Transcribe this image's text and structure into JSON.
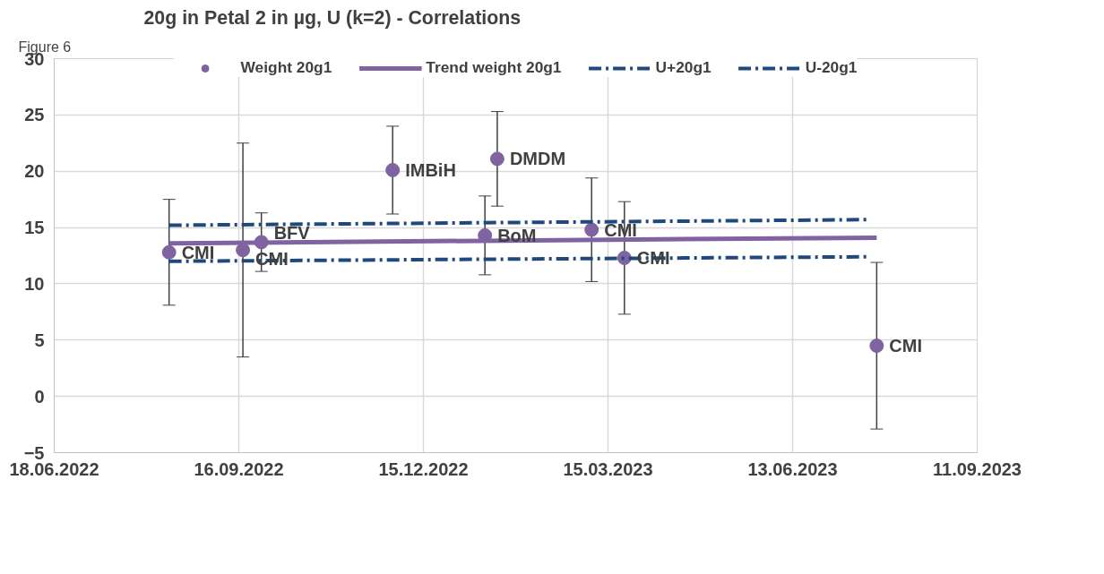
{
  "chart_data": {
    "type": "scatter",
    "title": "20g in Petal 2 in µg, U (k=2) - Correlations",
    "xlim": [
      "2022-06-18",
      "2023-09-11"
    ],
    "xticks": [
      {
        "value": "2022-06-18",
        "label": "18.06.2022"
      },
      {
        "value": "2022-09-16",
        "label": "16.09.2022"
      },
      {
        "value": "2022-12-15",
        "label": "15.12.2022"
      },
      {
        "value": "2023-03-15",
        "label": "15.03.2023"
      },
      {
        "value": "2023-06-13",
        "label": "13.06.2023"
      },
      {
        "value": "2023-09-11",
        "label": "11.09.2023"
      }
    ],
    "ylim": [
      -5,
      30
    ],
    "yticks": [
      -5,
      0,
      5,
      10,
      15,
      20,
      25,
      30
    ],
    "grid": true,
    "legend": "top",
    "series": [
      {
        "name": "Weight 20g1",
        "marker": "circle",
        "color": "#8064a2",
        "x": [
          "2022-08-13",
          "2022-09-18",
          "2022-09-27",
          "2022-11-30",
          "2023-01-14",
          "2023-01-20",
          "2023-03-07",
          "2023-03-23",
          "2023-07-24"
        ],
        "values": [
          12.8,
          13.0,
          13.7,
          20.1,
          14.3,
          21.1,
          14.8,
          12.3,
          4.5
        ],
        "errors": [
          4.7,
          9.5,
          2.6,
          3.9,
          3.5,
          4.2,
          4.6,
          5.0,
          7.4
        ]
      },
      {
        "name": "Trend weight 20g1",
        "type": "line",
        "line_style": "solid",
        "color": "#8064a2",
        "x": [
          "2022-08-13",
          "2023-07-24"
        ],
        "values": [
          13.6,
          14.1
        ]
      },
      {
        "name": "U+20g1",
        "type": "line",
        "line_style": "dashed",
        "color": "#1f497d",
        "x": [
          "2022-08-13",
          "2023-07-20"
        ],
        "values": [
          15.2,
          15.7
        ]
      },
      {
        "name": "U-20g1",
        "type": "line",
        "line_style": "dashed",
        "color": "#1f497d",
        "x": [
          "2022-08-13",
          "2023-07-20"
        ],
        "values": [
          12.0,
          12.4
        ]
      }
    ],
    "annotations": [
      "Figure 6",
      {
        "text": "CMI",
        "x": "2022-08-13",
        "y": 12.8
      },
      {
        "text": "CMI",
        "x": "2022-09-18",
        "y": 13.0
      },
      {
        "text": "BFV",
        "x": "2022-09-27",
        "y": 13.7
      },
      {
        "text": "IMBiH",
        "x": "2022-11-30",
        "y": 20.1
      },
      {
        "text": "BoM",
        "x": "2023-01-14",
        "y": 14.3
      },
      {
        "text": "DMDM",
        "x": "2023-01-20",
        "y": 21.1
      },
      {
        "text": "CMI",
        "x": "2023-03-07",
        "y": 14.8
      },
      {
        "text": "CMI",
        "x": "2023-03-23",
        "y": 12.3
      },
      {
        "text": "CMI",
        "x": "2023-07-24",
        "y": 4.5
      }
    ]
  }
}
